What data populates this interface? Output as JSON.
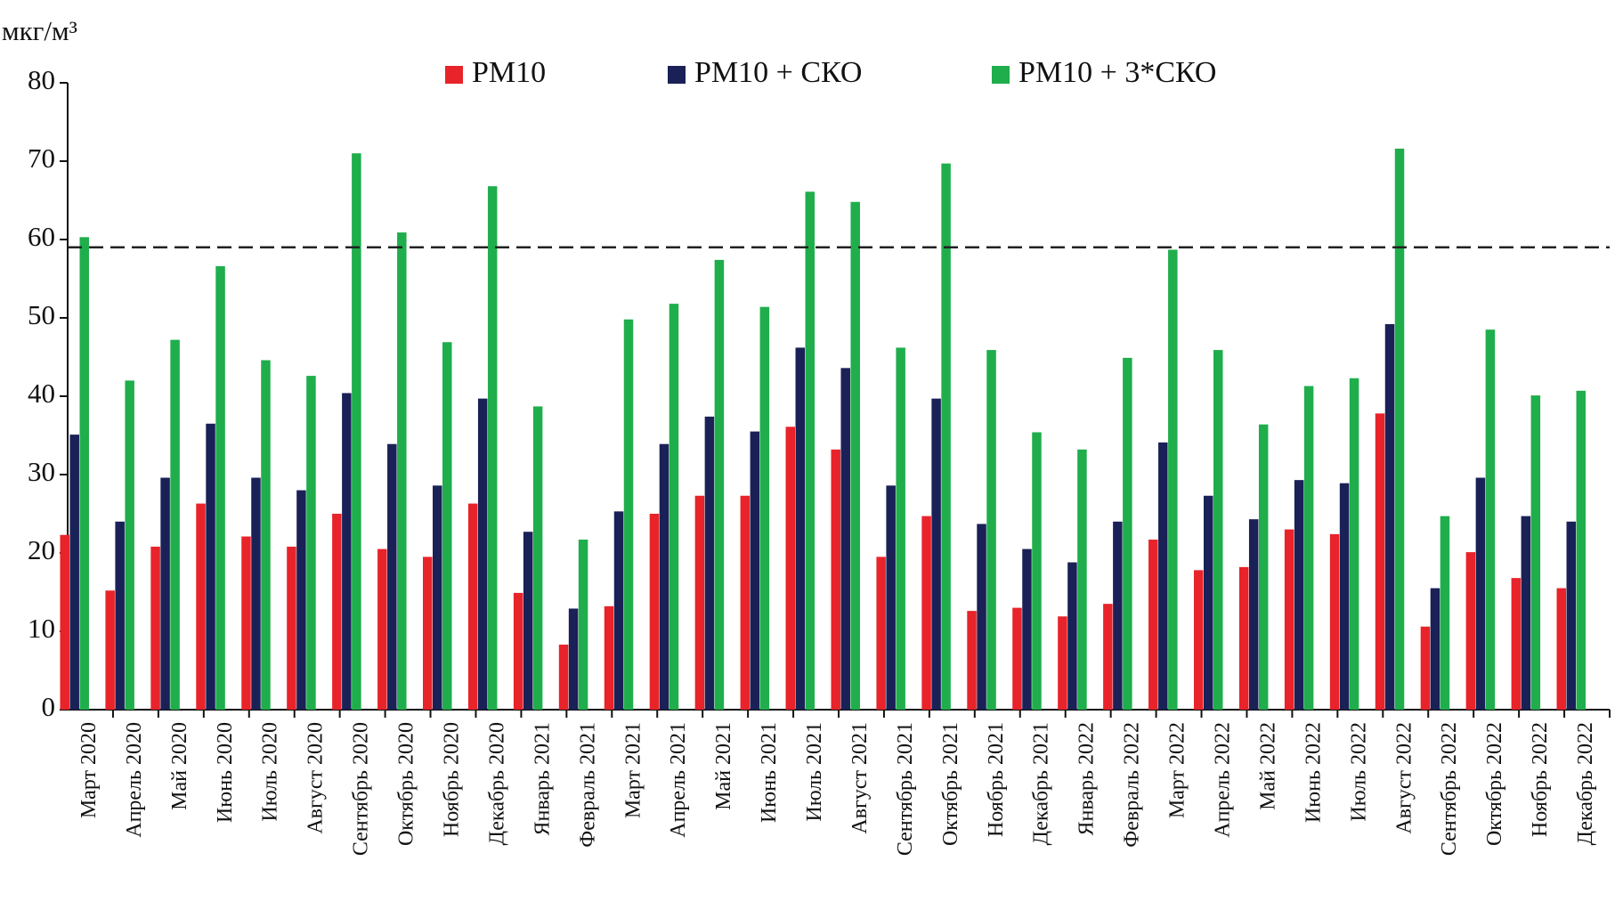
{
  "chart_data": {
    "type": "bar",
    "y_label": "мкг/м³",
    "categories": [
      "Март 2020",
      "Апрель 2020",
      "Май 2020",
      "Июнь 2020",
      "Июль 2020",
      "Август 2020",
      "Сентябрь 2020",
      "Октябрь 2020",
      "Ноябрь 2020",
      "Декабрь 2020",
      "Январь 2021",
      "Февраль 2021",
      "Март 2021",
      "Апрель 2021",
      "Май 2021",
      "Июнь 2021",
      "Июль 2021",
      "Август 2021",
      "Сентябрь 2021",
      "Октябрь 2021",
      "Ноябрь 2021",
      "Декабрь 2021",
      "Январь 2022",
      "Февраль 2022",
      "Март 2022",
      "Апрель 2022",
      "Май 2022",
      "Июнь 2022",
      "Июль 2022",
      "Август 2022",
      "Сентябрь 2022",
      "Октябрь 2022",
      "Ноябрь 2022",
      "Декабрь 2022"
    ],
    "series": [
      {
        "name": "PM10",
        "color": "#e8232a",
        "values": [
          22.3,
          15.2,
          20.8,
          26.3,
          22.1,
          20.8,
          25.0,
          20.5,
          19.5,
          26.3,
          14.9,
          8.3,
          13.2,
          25.0,
          27.3,
          27.3,
          36.1,
          33.2,
          19.5,
          24.7,
          12.6,
          13.0,
          11.9,
          13.5,
          21.7,
          17.8,
          18.2,
          23.0,
          22.4,
          37.8,
          10.6,
          20.1,
          16.8,
          15.5
        ]
      },
      {
        "name": "PM10 + СКО",
        "color": "#1a2157",
        "values": [
          35.1,
          24.0,
          29.6,
          36.5,
          29.6,
          28.0,
          40.4,
          33.9,
          28.6,
          39.7,
          22.7,
          12.9,
          25.3,
          33.9,
          37.4,
          35.5,
          46.2,
          43.6,
          28.6,
          39.7,
          23.7,
          20.5,
          18.8,
          24.0,
          34.1,
          27.3,
          24.3,
          29.3,
          28.9,
          49.2,
          15.5,
          29.6,
          24.7,
          24.0
        ]
      },
      {
        "name": "PM10 + 3*СКО",
        "color": "#1fae4b",
        "values": [
          60.3,
          42.0,
          47.2,
          56.6,
          44.6,
          42.6,
          71.0,
          60.9,
          46.9,
          66.8,
          38.7,
          21.7,
          49.8,
          51.8,
          57.4,
          51.4,
          66.1,
          64.8,
          46.2,
          69.7,
          45.9,
          35.4,
          33.2,
          44.9,
          58.7,
          45.9,
          36.4,
          41.3,
          42.3,
          71.6,
          24.7,
          48.5,
          40.1,
          40.7
        ]
      }
    ],
    "reference_line": 59,
    "ylim": [
      0,
      80
    ],
    "yticks": [
      0,
      10,
      20,
      30,
      40,
      50,
      60,
      70,
      80
    ],
    "grid": false
  }
}
